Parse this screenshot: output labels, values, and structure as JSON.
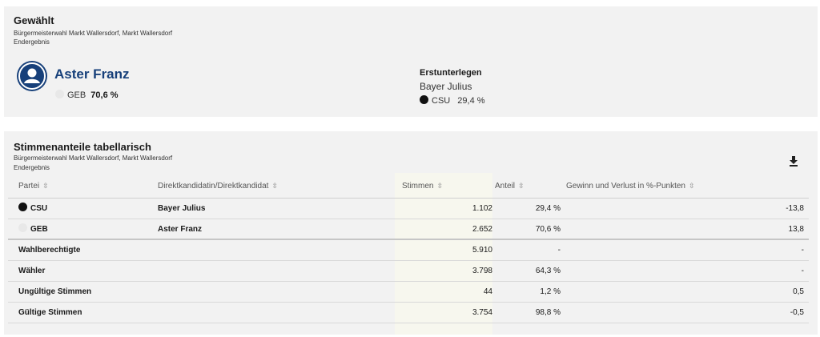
{
  "top": {
    "heading": "Gewählt",
    "election": "Bürgermeisterwahl Markt Wallersdorf, Markt Wallersdorf",
    "status": "Endergebnis",
    "winner": {
      "name": "Aster Franz",
      "party": "GEB",
      "share": "70,6 %"
    },
    "runner_up": {
      "heading": "Erstunterlegen",
      "name": "Bayer Julius",
      "party": "CSU",
      "share": "29,4 %"
    }
  },
  "table_card": {
    "heading": "Stimmenanteile tabellarisch",
    "election": "Bürgermeisterwahl Markt Wallersdorf, Markt Wallersdorf",
    "status": "Endergebnis",
    "download_icon": "download-icon",
    "sort_icon": "⇳",
    "columns": {
      "party": "Partei",
      "candidate": "Direktkandidatin/Direktkandidat",
      "votes": "Stimmen",
      "share": "Anteil",
      "change": "Gewinn und Verlust in %-Punkten"
    },
    "party_rows": [
      {
        "party": "CSU",
        "candidate": "Bayer Julius",
        "votes": "1.102",
        "share": "29,4 %",
        "change": "-13,8"
      },
      {
        "party": "GEB",
        "candidate": "Aster Franz",
        "votes": "2.652",
        "share": "70,6 %",
        "change": "13,8"
      }
    ],
    "summary_rows": [
      {
        "label": "Wahlberechtigte",
        "votes": "5.910",
        "share": "-",
        "change": "-"
      },
      {
        "label": "Wähler",
        "votes": "3.798",
        "share": "64,3 %",
        "change": "-"
      },
      {
        "label": "Ungültige Stimmen",
        "votes": "44",
        "share": "1,2 %",
        "change": "0,5"
      },
      {
        "label": "Gültige Stimmen",
        "votes": "3.754",
        "share": "98,8 %",
        "change": "-0,5"
      }
    ]
  },
  "colors": {
    "accent": "#17407a",
    "csu": "#111111",
    "geb": "#e8e8e8",
    "votes_highlight": "#f7f7ee"
  }
}
